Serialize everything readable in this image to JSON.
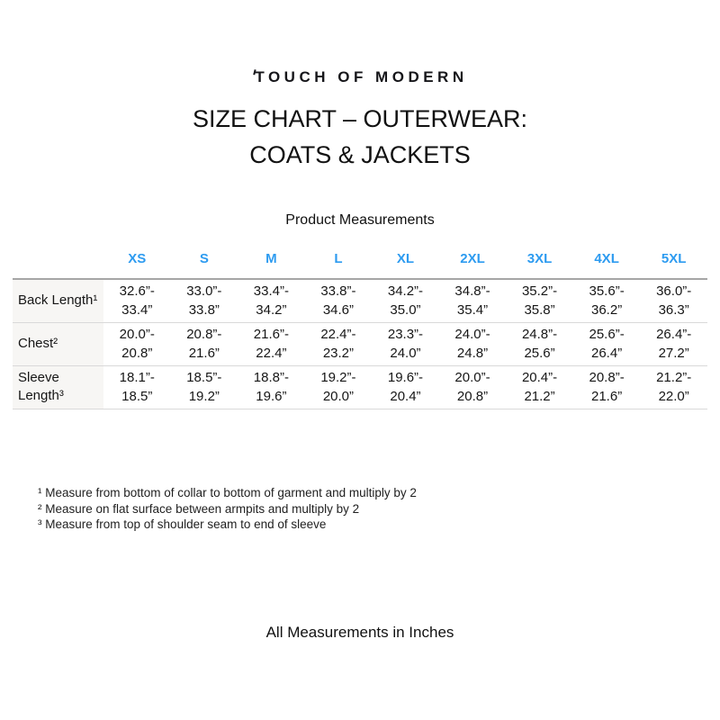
{
  "page": {
    "logo": "TOUCH OF MODERN",
    "title_line1": "SIZE CHART – OUTERWEAR:",
    "title_line2": "COATS & JACKETS",
    "section_title": "Product Measurements",
    "footer": "All Measurements in Inches"
  },
  "colors": {
    "size_header_blue": "#2d9bf0",
    "table_top_border": "#a6a6a6",
    "row_divider": "#d9d9d9",
    "label_cell_bg": "#f7f6f4",
    "text": "#161616"
  },
  "table": {
    "columns": [
      "XS",
      "S",
      "M",
      "L",
      "XL",
      "2XL",
      "3XL",
      "4XL",
      "5XL"
    ],
    "rows": [
      {
        "label": "Back Length¹",
        "values": [
          "32.6”-\n33.4”",
          "33.0”-\n33.8”",
          "33.4”-\n34.2”",
          "33.8”-\n34.6”",
          "34.2”-\n35.0”",
          "34.8”-\n35.4”",
          "35.2”-\n35.8”",
          "35.6”-\n36.2”",
          "36.0”-\n36.3”"
        ]
      },
      {
        "label": "Chest²",
        "values": [
          "20.0”-\n20.8”",
          "20.8”-\n21.6”",
          "21.6”-\n22.4”",
          "22.4”-\n23.2”",
          "23.3”-\n24.0”",
          "24.0”-\n24.8”",
          "24.8”-\n25.6”",
          "25.6”-\n26.4”",
          "26.4”-\n27.2”"
        ]
      },
      {
        "label": "Sleeve Length³",
        "values": [
          "18.1”-\n18.5”",
          "18.5”-\n19.2”",
          "18.8”-\n19.6”",
          "19.2”-\n20.0”",
          "19.6”-\n20.4”",
          "20.0”-\n20.8”",
          "20.4”-\n21.2”",
          "20.8”-\n21.6”",
          "21.2”-\n22.0”"
        ]
      }
    ],
    "units": "inches"
  },
  "footnotes": [
    "¹ Measure from bottom of collar to bottom of garment and multiply by 2",
    "² Measure on flat surface between armpits and multiply by 2",
    "³ Measure from top of shoulder seam to end of sleeve"
  ]
}
